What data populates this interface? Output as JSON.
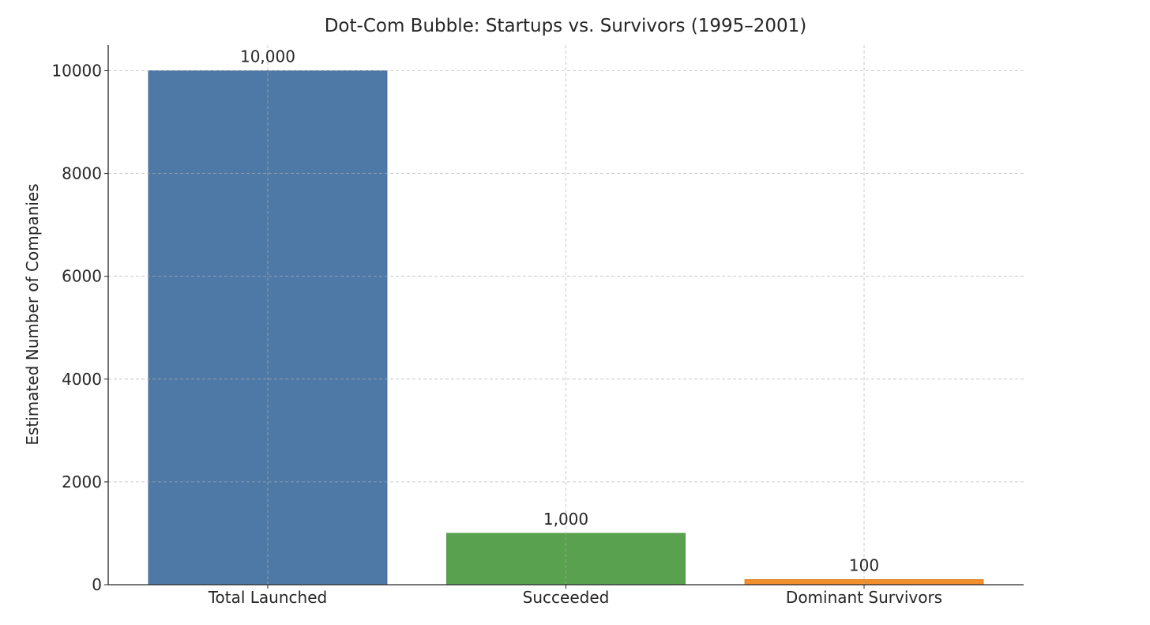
{
  "chart_data": {
    "type": "bar",
    "title": "Dot-Com Bubble: Startups vs. Survivors (1995–2001)",
    "xlabel": "",
    "ylabel": "Estimated Number of Companies",
    "categories": [
      "Total Launched",
      "Succeeded",
      "Dominant Survivors"
    ],
    "values": [
      10000,
      1000,
      100
    ],
    "value_labels": [
      "10,000",
      "1,000",
      "100"
    ],
    "colors": [
      "#4e79a7",
      "#59a14f",
      "#f28e2b"
    ],
    "ylim": [
      0,
      10500
    ],
    "yticks": [
      0,
      2000,
      4000,
      6000,
      8000,
      10000
    ],
    "ytick_labels": [
      "0",
      "2000",
      "4000",
      "6000",
      "8000",
      "10000"
    ],
    "grid": true,
    "legend": "none"
  }
}
